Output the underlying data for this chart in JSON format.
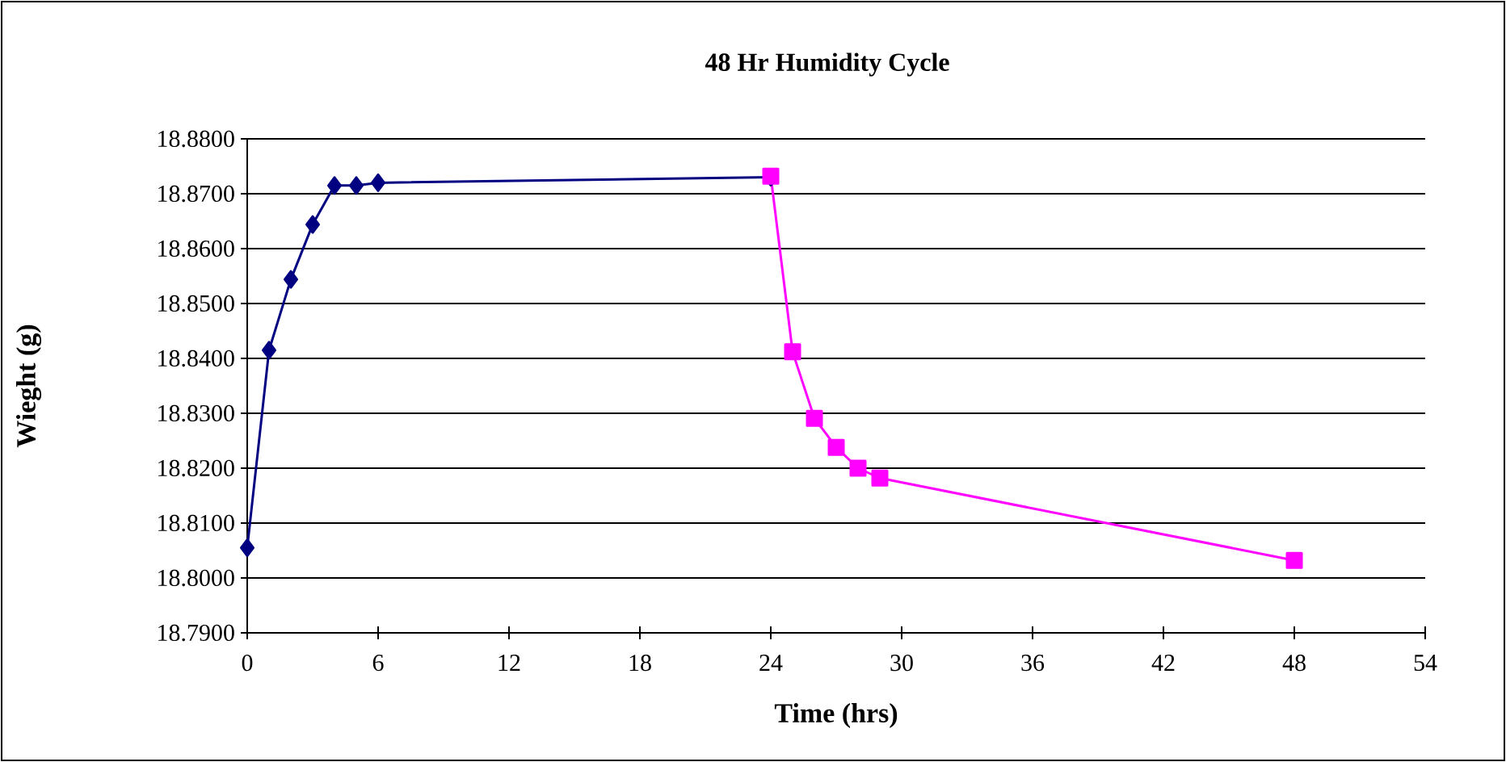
{
  "chart_data": {
    "type": "line",
    "title": "48 Hr Humidity Cycle",
    "xlabel": "Time (hrs)",
    "ylabel": "Wieght (g)",
    "xlim": [
      0,
      54
    ],
    "xticks": [
      0,
      6,
      12,
      18,
      24,
      30,
      36,
      42,
      48,
      54
    ],
    "ylim": [
      18.79,
      18.88
    ],
    "yticks": [
      {
        "value": 18.79,
        "label": "18.7900"
      },
      {
        "value": 18.8,
        "label": "18.8000"
      },
      {
        "value": 18.81,
        "label": "18.8100"
      },
      {
        "value": 18.82,
        "label": "18.8200"
      },
      {
        "value": 18.83,
        "label": "18.8300"
      },
      {
        "value": 18.84,
        "label": "18.8400"
      },
      {
        "value": 18.85,
        "label": "18.8500"
      },
      {
        "value": 18.86,
        "label": "18.8600"
      },
      {
        "value": 18.87,
        "label": "18.8700"
      },
      {
        "value": 18.88,
        "label": "18.8800"
      }
    ],
    "grid": "y",
    "line_style": "solid",
    "series": [
      {
        "color": "#000080",
        "marker": "diamond",
        "x": [
          0,
          1,
          2,
          3,
          4,
          5,
          6,
          24
        ],
        "values": [
          18.8055,
          18.8415,
          18.8544,
          18.8644,
          18.8715,
          18.8715,
          18.872,
          18.873
        ]
      },
      {
        "color": "#ff00ff",
        "marker": "square",
        "x": [
          24,
          25,
          26,
          27,
          28,
          29,
          48
        ],
        "values": [
          18.8732,
          18.8412,
          18.8291,
          18.8238,
          18.82,
          18.8182,
          18.8032
        ]
      }
    ]
  }
}
